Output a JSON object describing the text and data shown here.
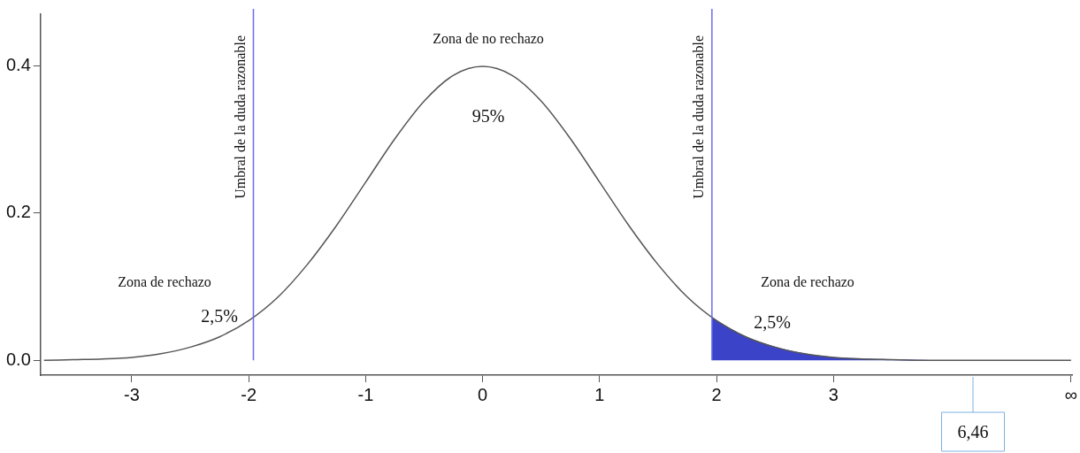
{
  "chart_data": {
    "type": "line",
    "series": [
      {
        "type": "area",
        "color": "#3b44c8",
        "x": [
          1.96,
          2,
          2.25,
          2.5,
          2.75,
          3,
          3.25,
          3.5,
          3.8
        ],
        "values": [
          0.058,
          0.054,
          0.032,
          0.018,
          0.009,
          0.004,
          0.002,
          0.001,
          0.0
        ]
      },
      {
        "color": "#555555",
        "x": [
          -3.75,
          -3.5,
          -3.25,
          -3,
          -2.75,
          -2.5,
          -2.25,
          -2,
          -1.75,
          -1.5,
          -1.25,
          -1,
          -0.75,
          -0.5,
          -0.25,
          0,
          0.25,
          0.5,
          0.75,
          1,
          1.25,
          1.5,
          1.75,
          2,
          2.25,
          2.5,
          2.75,
          3,
          3.25,
          3.5,
          3.75,
          4,
          5.03
        ],
        "values": [
          0.0,
          0.001,
          0.002,
          0.004,
          0.009,
          0.018,
          0.032,
          0.054,
          0.086,
          0.13,
          0.183,
          0.242,
          0.301,
          0.352,
          0.387,
          0.399,
          0.387,
          0.352,
          0.301,
          0.242,
          0.183,
          0.13,
          0.086,
          0.054,
          0.032,
          0.018,
          0.009,
          0.004,
          0.002,
          0.001,
          0.0,
          0.0,
          0.0
        ]
      }
    ],
    "xlim": [
      -3.78,
      5.04
    ],
    "xticks": [
      -3,
      -2,
      -1,
      0,
      1,
      2,
      3,
      {
        "value": 5.03,
        "label": "∞"
      }
    ],
    "ylim": [
      -0.02,
      0.47
    ],
    "yticks": [
      {
        "value": 0,
        "label": "0.0"
      },
      0.2,
      0.4
    ],
    "ref_lines": [
      {
        "axis": "x",
        "value": -1.96,
        "label": "Umbral de la duda razonable",
        "color": "#6b6bf0"
      },
      {
        "axis": "x",
        "value": 1.96,
        "label": "Umbral de la duda razonable",
        "color": "#6b6bf0"
      }
    ],
    "annotations": [
      "Zona de no rechazo",
      "95%",
      "Zona de rechazo",
      "2,5%",
      "Zona de rechazo",
      "2,5%",
      "6,46"
    ],
    "grid": false,
    "legend": false,
    "marker": "none",
    "line_style": "solid"
  }
}
